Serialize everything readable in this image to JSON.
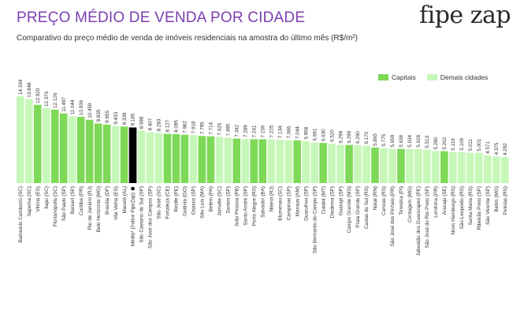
{
  "header": {
    "title": "PREÇO MÉDIO DE VENDA POR CIDADE",
    "subtitle": "Comparativo do preço médio de venda de imóveis residenciais na amostra do último mês (R$/m²)",
    "logo_text": "fipe zap"
  },
  "legend": {
    "capitais": "Capitais",
    "demais": "Demais cidades"
  },
  "colors": {
    "title": "#7b3fb0",
    "capital": "#7ed957",
    "other": "#c6f7b8",
    "index": "#000000"
  },
  "chart_data": {
    "type": "bar",
    "title": "PREÇO MÉDIO DE VENDA POR CIDADE",
    "ylabel": "R$/m²",
    "ylim": [
      0,
      14334
    ],
    "series_legend": [
      "Capitais",
      "Demais cidades"
    ],
    "bars": [
      {
        "label": "Balneário Camboriú (SC)",
        "value": 14334,
        "display": "14.334",
        "kind": "other"
      },
      {
        "label": "Itapema (SC)",
        "value": 13848,
        "display": "13.848",
        "kind": "other"
      },
      {
        "label": "Vitória (ES)",
        "value": 12920,
        "display": "12.920",
        "kind": "capital"
      },
      {
        "label": "Itajaí (SC)",
        "value": 12376,
        "display": "12.376",
        "kind": "other"
      },
      {
        "label": "Florianópolis (SC)",
        "value": 12126,
        "display": "12.126",
        "kind": "capital"
      },
      {
        "label": "São Paulo (SP)",
        "value": 11497,
        "display": "11.497",
        "kind": "capital"
      },
      {
        "label": "Barueri (SP)",
        "value": 11044,
        "display": "11.044",
        "kind": "other"
      },
      {
        "label": "Curitiba (PR)",
        "value": 10936,
        "display": "10.936",
        "kind": "capital"
      },
      {
        "label": "Rio de Janeiro (RJ)",
        "value": 10459,
        "display": "10.459",
        "kind": "capital"
      },
      {
        "label": "Belo Horizonte (MG)",
        "value": 9835,
        "display": "9.835",
        "kind": "capital"
      },
      {
        "label": "Brasília (DF)",
        "value": 9655,
        "display": "9.655",
        "kind": "capital"
      },
      {
        "label": "Vila Velha (ES)",
        "value": 9433,
        "display": "9.433",
        "kind": "other"
      },
      {
        "label": "Maceió (AL)",
        "value": 9339,
        "display": "9.339",
        "kind": "capital"
      },
      {
        "label": "Média* (Índice FipeZap)",
        "value": 9185,
        "display": "9.185",
        "kind": "index"
      },
      {
        "label": "São Caetano do Sul (SP)",
        "value": 8688,
        "display": "8.688",
        "kind": "other"
      },
      {
        "label": "São José dos Campos (SP)",
        "value": 8407,
        "display": "8.407",
        "kind": "other"
      },
      {
        "label": "São José (SC)",
        "value": 8283,
        "display": "8.283",
        "kind": "other"
      },
      {
        "label": "Fortaleza (CE)",
        "value": 8127,
        "display": "8.127",
        "kind": "capital"
      },
      {
        "label": "Recife (PE)",
        "value": 8095,
        "display": "8.095",
        "kind": "capital"
      },
      {
        "label": "Goiânia (GO)",
        "value": 7982,
        "display": "7.982",
        "kind": "capital"
      },
      {
        "label": "Osasco (SP)",
        "value": 7918,
        "display": "7.918",
        "kind": "other"
      },
      {
        "label": "São Luís (MA)",
        "value": 7795,
        "display": "7.795",
        "kind": "capital"
      },
      {
        "label": "Belém (PA)",
        "value": 7714,
        "display": "7.714",
        "kind": "capital"
      },
      {
        "label": "Joinville (SC)",
        "value": 7626,
        "display": "7.626",
        "kind": "other"
      },
      {
        "label": "Santos (SP)",
        "value": 7495,
        "display": "7.495",
        "kind": "other"
      },
      {
        "label": "João Pessoa (PB)",
        "value": 7342,
        "display": "7.342",
        "kind": "capital"
      },
      {
        "label": "Santo André (SP)",
        "value": 7289,
        "display": "7.289",
        "kind": "other"
      },
      {
        "label": "Porto Alegre (RS)",
        "value": 7241,
        "display": "7.241",
        "kind": "capital"
      },
      {
        "label": "Salvador (BA)",
        "value": 7236,
        "display": "7.236",
        "kind": "capital"
      },
      {
        "label": "Niterói (RJ)",
        "value": 7225,
        "display": "7.225",
        "kind": "other"
      },
      {
        "label": "Blumenau (SC)",
        "value": 7134,
        "display": "7.134",
        "kind": "other"
      },
      {
        "label": "Campinas (SP)",
        "value": 7086,
        "display": "7.086",
        "kind": "other"
      },
      {
        "label": "Manaus (AM)",
        "value": 7044,
        "display": "7.044",
        "kind": "capital"
      },
      {
        "label": "Guarulhos (SP)",
        "value": 6958,
        "display": "6.958",
        "kind": "other"
      },
      {
        "label": "São Bernardo do Campo (SP)",
        "value": 6691,
        "display": "6.691",
        "kind": "other"
      },
      {
        "label": "Cuiabá (MT)",
        "value": 6630,
        "display": "6.630",
        "kind": "capital"
      },
      {
        "label": "Diadema (SP)",
        "value": 6520,
        "display": "6.520",
        "kind": "other"
      },
      {
        "label": "Guarujá (SP)",
        "value": 6299,
        "display": "6.299",
        "kind": "other"
      },
      {
        "label": "Campo Grande (MS)",
        "value": 6299,
        "display": "6.299",
        "kind": "capital"
      },
      {
        "label": "Praia Grande (SP)",
        "value": 6260,
        "display": "6.260",
        "kind": "other"
      },
      {
        "label": "Caxias do Sul (RS)",
        "value": 6170,
        "display": "6.170",
        "kind": "other"
      },
      {
        "label": "Natal (RN)",
        "value": 5865,
        "display": "5.865",
        "kind": "capital"
      },
      {
        "label": "Canoas (RS)",
        "value": 5775,
        "display": "5.775",
        "kind": "other"
      },
      {
        "label": "São José dos Pinhais (PR)",
        "value": 5659,
        "display": "5.659",
        "kind": "other"
      },
      {
        "label": "Teresina (PI)",
        "value": 5638,
        "display": "5.638",
        "kind": "capital"
      },
      {
        "label": "Contagem (MG)",
        "value": 5634,
        "display": "5.634",
        "kind": "other"
      },
      {
        "label": "Jaboatão dos Guararapes (PE)",
        "value": 5628,
        "display": "5.628",
        "kind": "other"
      },
      {
        "label": "São José do Rio Preto (SP)",
        "value": 5513,
        "display": "5.513",
        "kind": "other"
      },
      {
        "label": "Londrina (PR)",
        "value": 5280,
        "display": "5.280",
        "kind": "other"
      },
      {
        "label": "Aracaju (SE)",
        "value": 5262,
        "display": "5.262",
        "kind": "capital"
      },
      {
        "label": "Novo Hamburgo (RS)",
        "value": 5119,
        "display": "5.119",
        "kind": "other"
      },
      {
        "label": "São Leopoldo (RS)",
        "value": 5109,
        "display": "5.109",
        "kind": "other"
      },
      {
        "label": "Santa Maria (RS)",
        "value": 5011,
        "display": "5.011",
        "kind": "other"
      },
      {
        "label": "Ribeirão Preto (SP)",
        "value": 5001,
        "display": "5.001",
        "kind": "other"
      },
      {
        "label": "São Vicente (SP)",
        "value": 4571,
        "display": "4.571",
        "kind": "other"
      },
      {
        "label": "Betim (MG)",
        "value": 4375,
        "display": "4.375",
        "kind": "other"
      },
      {
        "label": "Pelotas (RS)",
        "value": 4292,
        "display": "4.292",
        "kind": "other"
      }
    ]
  }
}
